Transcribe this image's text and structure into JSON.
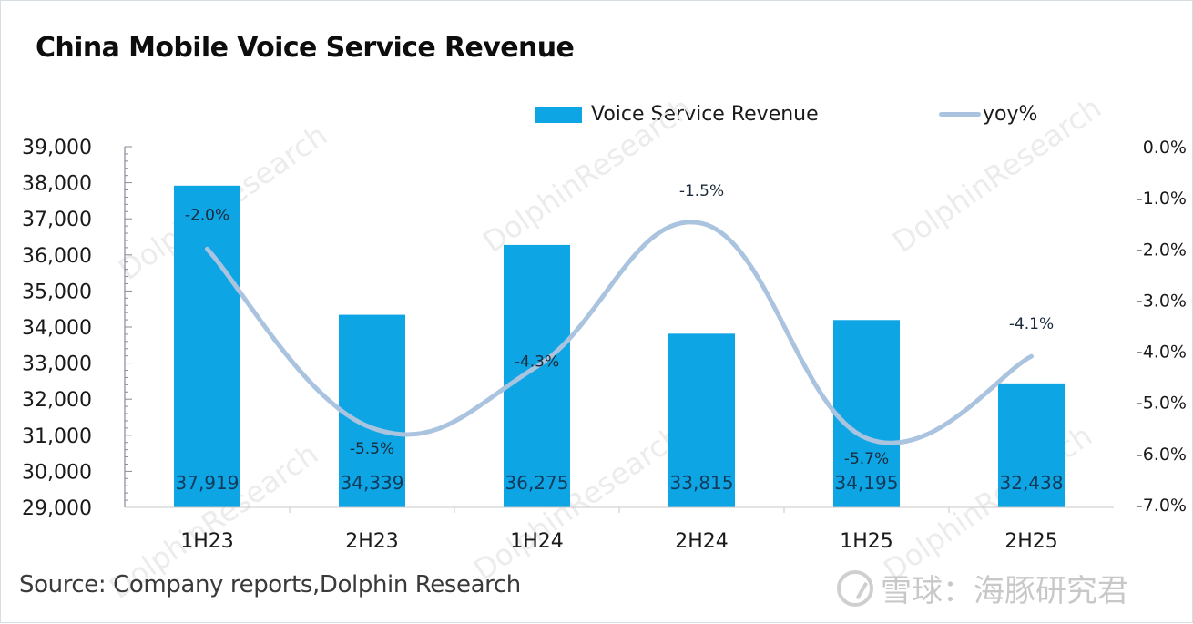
{
  "title": "China Mobile Voice Service Revenue",
  "legend": {
    "bar_label": "Voice Service Revenue",
    "line_label": "yoy%"
  },
  "source": "Source: Company reports,Dolphin Research",
  "brand": {
    "text": "雪球：海豚研究君",
    "logo_icon": "snowball-logo-icon"
  },
  "watermark": "DolphinResearch",
  "colors": {
    "bar": "#0ea5e5",
    "line": "#aac3de",
    "axis": "#8a8a99",
    "text": "#1a1a1a"
  },
  "chart_data": {
    "type": "bar",
    "title": "China Mobile Voice Service Revenue",
    "xlabel": "",
    "ylabel": "",
    "categories": [
      "1H23",
      "2H23",
      "1H24",
      "2H24",
      "1H25",
      "2H25"
    ],
    "series": [
      {
        "name": "Voice Service Revenue",
        "type": "bar",
        "axis": "left",
        "values": [
          37919,
          34339,
          36275,
          33815,
          34195,
          32438
        ],
        "labels": [
          "37,919",
          "34,339",
          "36,275",
          "33,815",
          "34,195",
          "32,438"
        ]
      },
      {
        "name": "yoy%",
        "type": "line",
        "axis": "right",
        "smooth": true,
        "values": [
          -2.0,
          -5.5,
          -4.3,
          -1.5,
          -5.7,
          -4.1
        ],
        "labels": [
          "-2.0%",
          "-5.5%",
          "-4.3%",
          "-1.5%",
          "-5.7%",
          "-4.1%"
        ]
      }
    ],
    "y_left": {
      "range": [
        29000,
        39000
      ],
      "ticks": [
        "39,000",
        "38,000",
        "37,000",
        "36,000",
        "35,000",
        "34,000",
        "33,000",
        "32,000",
        "31,000",
        "30,000",
        "29,000"
      ]
    },
    "y_right": {
      "range": [
        -7.0,
        0.0
      ],
      "ticks": [
        "0.0%",
        "-1.0%",
        "-2.0%",
        "-3.0%",
        "-4.0%",
        "-5.0%",
        "-6.0%",
        "-7.0%"
      ]
    },
    "grid": false,
    "legend_position": "top-right"
  }
}
